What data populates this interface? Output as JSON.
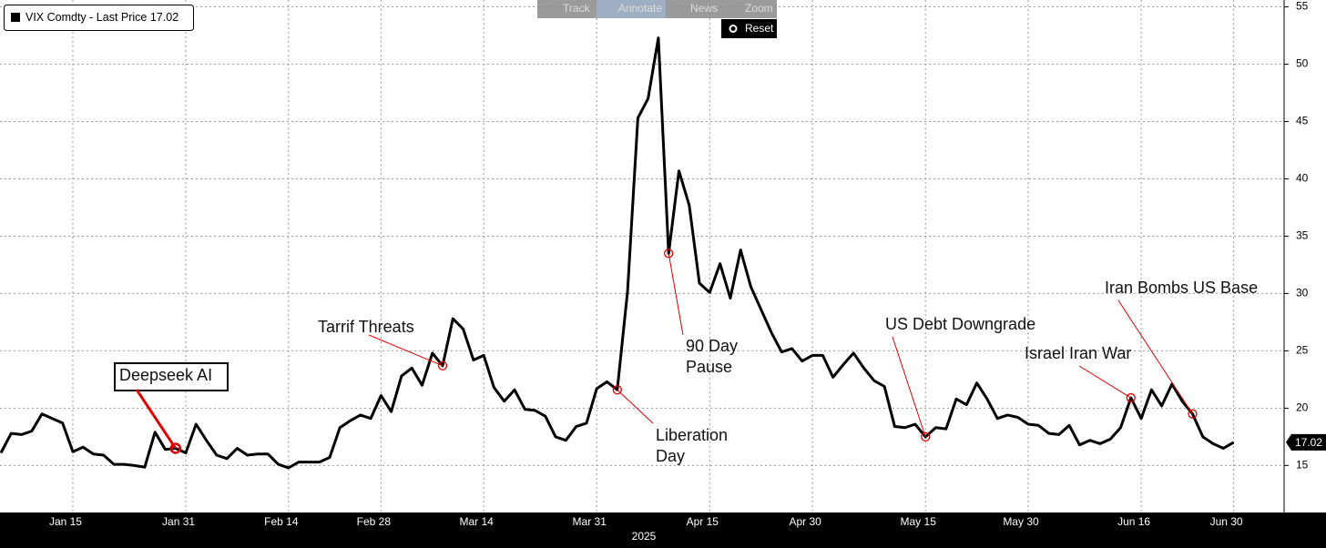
{
  "chart_data": {
    "type": "line",
    "legend_location": "upper left",
    "xlabel": "2025",
    "categories": [
      null,
      null,
      null,
      null,
      null,
      null,
      null,
      "Jan 15",
      null,
      null,
      null,
      null,
      null,
      null,
      null,
      null,
      null,
      null,
      "Jan 31",
      null,
      null,
      null,
      null,
      null,
      null,
      null,
      null,
      null,
      "Feb 14",
      null,
      null,
      null,
      null,
      null,
      null,
      null,
      null,
      "Feb 28",
      null,
      null,
      null,
      null,
      null,
      null,
      null,
      null,
      null,
      "Mar 14",
      null,
      null,
      null,
      null,
      null,
      null,
      null,
      null,
      null,
      null,
      "Mar 31",
      null,
      null,
      null,
      null,
      null,
      null,
      null,
      null,
      null,
      null,
      "Apr 15",
      null,
      null,
      null,
      null,
      null,
      null,
      null,
      null,
      null,
      "Apr 30",
      null,
      null,
      null,
      null,
      null,
      null,
      null,
      null,
      null,
      null,
      "May 15",
      null,
      null,
      null,
      null,
      null,
      null,
      null,
      null,
      null,
      "May 30",
      null,
      null,
      null,
      null,
      null,
      null,
      null,
      null,
      null,
      null,
      "Jun 16",
      null,
      null,
      null,
      null,
      null,
      null,
      null,
      null,
      "Jun 30"
    ],
    "series": [
      {
        "name": "VIX Comdty - Last Price",
        "color": "#000000",
        "values": [
          16.1,
          17.8,
          17.7,
          18.0,
          19.5,
          19.1,
          18.7,
          16.2,
          16.6,
          16.0,
          15.9,
          15.1,
          15.1,
          15.0,
          14.85,
          17.9,
          16.4,
          16.5,
          16.1,
          18.6,
          17.2,
          15.9,
          15.6,
          16.5,
          15.9,
          16.0,
          16.0,
          15.1,
          14.8,
          15.3,
          15.3,
          15.3,
          15.7,
          18.3,
          18.9,
          19.4,
          19.1,
          21.1,
          19.7,
          22.8,
          23.5,
          22.0,
          24.8,
          23.7,
          27.8,
          26.9,
          24.2,
          24.6,
          21.8,
          20.6,
          21.6,
          19.9,
          19.8,
          19.3,
          17.5,
          17.2,
          18.4,
          18.7,
          21.7,
          22.3,
          21.6,
          30.2,
          45.3,
          47.0,
          52.3,
          33.5,
          40.7,
          37.7,
          30.9,
          30.1,
          32.6,
          29.6,
          33.8,
          30.6,
          28.6,
          26.6,
          24.9,
          25.2,
          24.1,
          24.6,
          24.6,
          22.7,
          23.8,
          24.8,
          23.5,
          22.4,
          21.9,
          18.4,
          18.3,
          18.6,
          17.5,
          18.3,
          18.2,
          20.8,
          20.3,
          22.2,
          20.8,
          19.1,
          19.4,
          19.2,
          18.6,
          18.5,
          17.8,
          17.7,
          18.5,
          16.8,
          17.2,
          16.9,
          17.3,
          18.3,
          20.9,
          19.1,
          21.6,
          20.2,
          22.1,
          20.6,
          19.5,
          17.5,
          16.9,
          16.5,
          17.02
        ]
      }
    ],
    "ylim": [
      10.9,
      55.6
    ],
    "yticks": [
      15,
      20,
      25,
      30,
      35,
      40,
      45,
      50,
      55
    ],
    "grid": true,
    "annotations": [
      [
        "Deepseek AI"
      ],
      [
        "Tarrif Threats"
      ],
      [
        "90 Day",
        "Pause"
      ],
      [
        "Liberation",
        "Day"
      ],
      [
        "US Debt Downgrade"
      ],
      [
        "Israel Iran War"
      ],
      [
        "Iran Bombs US Base"
      ]
    ]
  },
  "toolbar": {
    "items": [
      "Track",
      "Annotate",
      "News",
      "Zoom"
    ],
    "reset": "Reset"
  }
}
